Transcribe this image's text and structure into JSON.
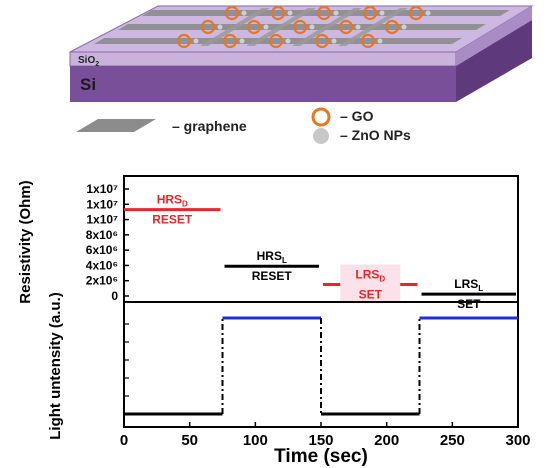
{
  "device": {
    "substrate_label": "Si",
    "oxide_label": "SiO",
    "oxide_sub": "2",
    "legend": [
      {
        "label": "– graphene",
        "icon": "graphene-swatch-icon",
        "color": "#8c8c8c"
      },
      {
        "label": "– GO",
        "icon": "go-ring-icon",
        "color": "#e87722"
      },
      {
        "label": "– ZnO NPs",
        "icon": "zno-dot-icon",
        "color": "#c8c8c8"
      }
    ],
    "colors": {
      "substrate": "#7a4f9a",
      "oxide": "#c9b3dc",
      "graphene": "#8c8c8c",
      "go": "#e87722"
    }
  },
  "chart_data": [
    {
      "type": "line",
      "ylabel": "Resistivity (Ohm)",
      "y_ticks": [
        "0",
        "2x10⁶",
        "4x10⁶",
        "6x10⁶",
        "8x10⁶",
        "1x10⁷",
        "1x10⁷",
        "1x10⁷"
      ],
      "ylim": [
        0,
        14000000
      ],
      "grid": false,
      "segments": [
        {
          "x": [
            0,
            75
          ],
          "y": 11300000,
          "color": "#e8262a",
          "label": "HRS",
          "label_sub": "D",
          "state": "RESET",
          "label_color": "#e8262a"
        },
        {
          "x": [
            75,
            150
          ],
          "y": 3900000,
          "color": "#000000",
          "label": "HRS",
          "label_sub": "L",
          "state": "RESET",
          "label_color": "#000000"
        },
        {
          "x": [
            150,
            225
          ],
          "y": 1500000,
          "color": "#e8262a",
          "label": "LRS",
          "label_sub": "D",
          "state": "SET",
          "label_color": "#e8262a"
        },
        {
          "x": [
            225,
            300
          ],
          "y": 250000,
          "color": "#000000",
          "label": "LRS",
          "label_sub": "L",
          "state": "SET",
          "label_color": "#000000"
        }
      ]
    },
    {
      "type": "line",
      "ylabel": "Light untensity (a.u.)",
      "xlabel": "Time (sec)",
      "xlim": [
        0,
        300
      ],
      "x_ticks": [
        "0",
        "50",
        "100",
        "150",
        "200",
        "250",
        "300"
      ],
      "ylim": [
        0,
        1
      ],
      "grid": false,
      "series": [
        {
          "x": [
            0,
            75,
            75,
            150,
            150,
            225,
            225,
            300
          ],
          "y": [
            0,
            0,
            1,
            1,
            0,
            0,
            1,
            1
          ],
          "low_color": "#000000",
          "high_color": "#1f2fd6"
        }
      ]
    }
  ]
}
